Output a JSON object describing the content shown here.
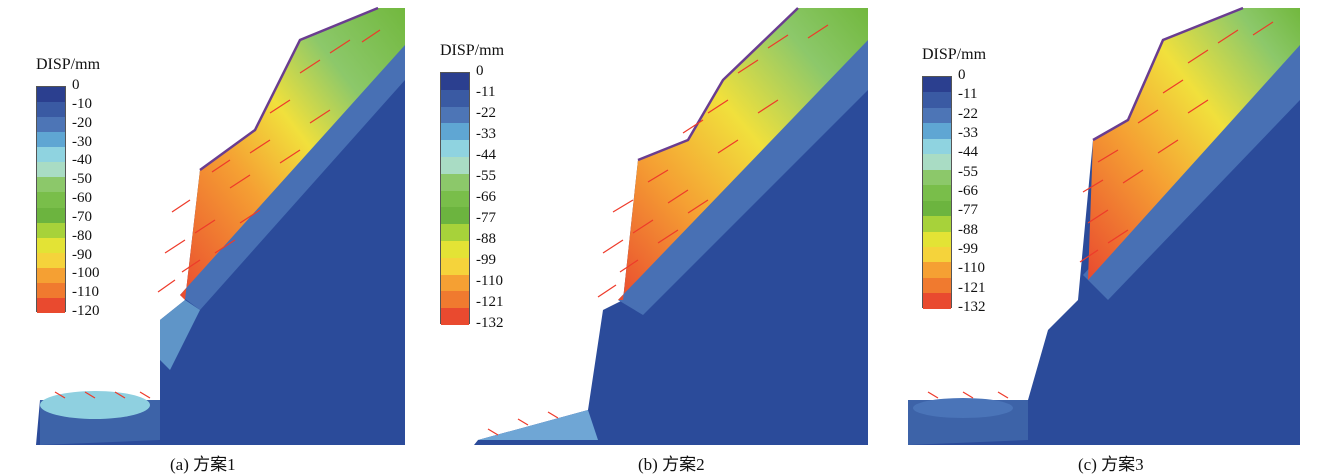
{
  "colors": {
    "outer": "#2b4b9a",
    "deep": "#23418f",
    "mid_blue": "#4870b4",
    "light_blue": "#6fa6d5",
    "cyan": "#8fd0e0",
    "green_light": "#8cc86a",
    "green": "#72b83e",
    "yellow": "#f1e03c",
    "orange": "#f5a033",
    "red": "#e94a2f",
    "arrow": "#ee3a2a",
    "crest": "#6a3d90"
  },
  "legend_scale_colors": [
    "#2b3f8f",
    "#3a5aa3",
    "#4d75b6",
    "#5fa6d3",
    "#8fd3e0",
    "#a9dcc4",
    "#8cc86a",
    "#79be4a",
    "#6cb43f",
    "#a7d23a",
    "#e3e335",
    "#f5d33b",
    "#f5a033",
    "#f07a2f",
    "#e94a2f"
  ],
  "panels": [
    {
      "id": "a",
      "caption": "(a) 方案1",
      "legend_title": "DISP/mm",
      "legend_values": [
        "0",
        "-10",
        "-20",
        "-30",
        "-40",
        "-50",
        "-60",
        "-70",
        "-80",
        "-90",
        "-100",
        "-110",
        "-120"
      ]
    },
    {
      "id": "b",
      "caption": "(b) 方案2",
      "legend_title": "DISP/mm",
      "legend_values": [
        "0",
        "-11",
        "-22",
        "-33",
        "-44",
        "-55",
        "-66",
        "-77",
        "-88",
        "-99",
        "-110",
        "-121",
        "-132"
      ]
    },
    {
      "id": "c",
      "caption": "(c) 方案3",
      "legend_title": "DISP/mm",
      "legend_values": [
        "0",
        "-11",
        "-22",
        "-33",
        "-44",
        "-55",
        "-66",
        "-77",
        "-88",
        "-99",
        "-110",
        "-121",
        "-132"
      ]
    }
  ]
}
